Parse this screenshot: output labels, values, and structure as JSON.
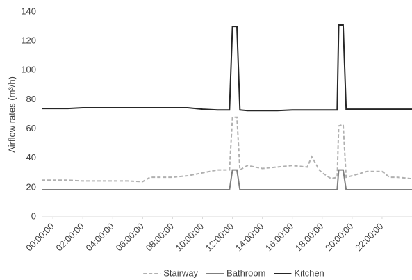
{
  "chart_data": {
    "type": "line",
    "y_label": "Airflow rates (m³/h)",
    "x": [
      -0.75,
      0,
      1,
      2,
      3,
      4,
      5,
      6,
      6.5,
      7,
      8,
      9,
      10,
      11,
      11.8,
      12,
      12.3,
      12.5,
      13,
      14,
      15,
      16,
      17,
      17.3,
      17.8,
      18,
      18.6,
      19,
      19.1,
      19.4,
      19.6,
      20,
      21,
      22,
      22.5,
      23,
      24
    ],
    "xlim": [
      -0.75,
      24
    ],
    "xticks": [
      {
        "value": 0,
        "label": "00:00:00"
      },
      {
        "value": 2,
        "label": "02:00:00"
      },
      {
        "value": 4,
        "label": "04:00:00"
      },
      {
        "value": 6,
        "label": "06:00:00"
      },
      {
        "value": 8,
        "label": "08:00:00"
      },
      {
        "value": 10,
        "label": "10:00:00"
      },
      {
        "value": 12,
        "label": "12:00:00"
      },
      {
        "value": 14,
        "label": "14:00:00"
      },
      {
        "value": 16,
        "label": "16:00:00"
      },
      {
        "value": 18,
        "label": "18:00:00"
      },
      {
        "value": 20,
        "label": "20:00:00"
      },
      {
        "value": 22,
        "label": "22:00:00"
      }
    ],
    "ylim": [
      0,
      140
    ],
    "yticks": [
      0,
      20,
      40,
      60,
      80,
      100,
      120,
      140
    ],
    "grid": false,
    "legend": "bottom",
    "series": [
      {
        "name": "Stairway",
        "color": "#b0b0b0",
        "line_style": "dashed",
        "values": [
          25,
          25,
          25,
          24.5,
          24.5,
          24.5,
          24.5,
          24,
          27,
          27,
          27,
          28,
          30,
          32,
          32,
          68,
          68,
          32,
          35,
          33,
          34,
          35,
          34,
          41,
          32,
          30,
          26,
          27,
          62,
          63,
          27,
          28,
          31,
          31,
          27,
          27,
          26
        ]
      },
      {
        "name": "Bathroom",
        "color": "#7f7f7f",
        "line_style": "solid",
        "values": [
          18.5,
          18.5,
          18.5,
          18.5,
          18.5,
          18.5,
          18.5,
          18.5,
          18.5,
          18.5,
          18.5,
          18.5,
          18.5,
          18.5,
          18.5,
          32,
          32,
          18.5,
          18.5,
          18.5,
          18.5,
          18.5,
          18.5,
          18.5,
          18.5,
          18.5,
          18.5,
          18.5,
          32,
          32,
          18.5,
          18.5,
          18.5,
          18.5,
          18.5,
          18.5,
          18.5
        ]
      },
      {
        "name": "Kitchen",
        "color": "#262626",
        "line_style": "solid",
        "values": [
          74,
          74,
          74,
          74.5,
          74.5,
          74.5,
          74.5,
          74.5,
          74.5,
          74.5,
          74.5,
          74.5,
          73.5,
          73,
          73,
          130,
          130,
          73,
          72.5,
          72.5,
          72.5,
          73,
          73,
          73,
          73,
          73,
          73,
          73,
          131,
          131,
          73.5,
          73.5,
          73.5,
          73.5,
          73.5,
          73.5,
          73.5
        ]
      }
    ]
  }
}
